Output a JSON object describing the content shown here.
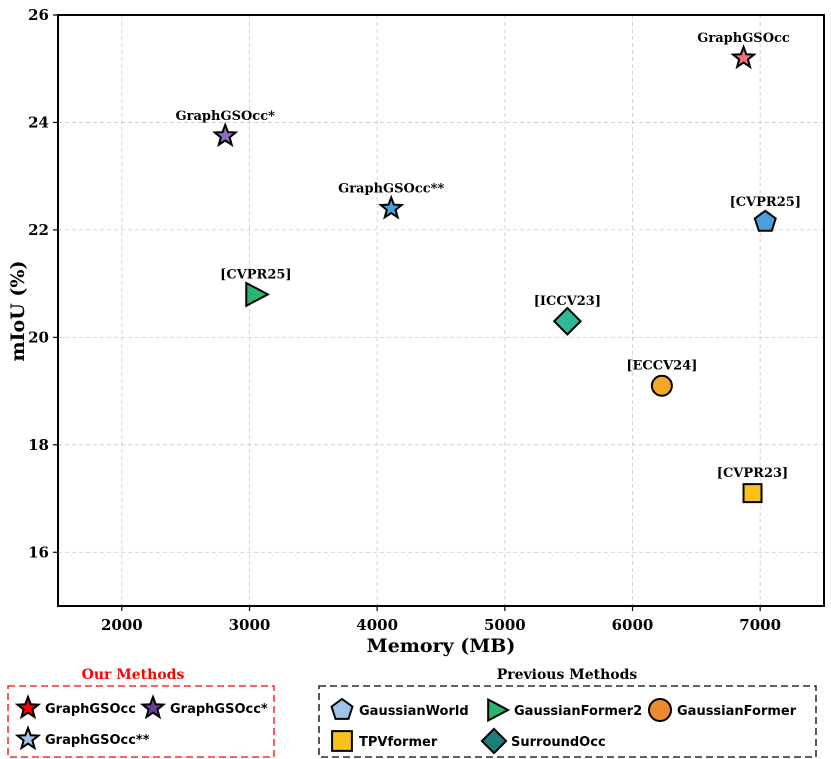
{
  "chart_data": {
    "type": "scatter",
    "xlabel": "Memory (MB)",
    "ylabel": "mIoU (%)",
    "xlim": [
      1500,
      7500
    ],
    "ylim": [
      15,
      26
    ],
    "xticks": [
      2000,
      3000,
      4000,
      5000,
      6000,
      7000
    ],
    "yticks": [
      16,
      18,
      20,
      22,
      24,
      26
    ],
    "grid": true,
    "points": [
      {
        "label": "GraphGSOcc",
        "method": "GraphGSOcc",
        "x": 6870,
        "y": 25.2,
        "marker": "star",
        "color": "#f0737a"
      },
      {
        "label": "GraphGSOcc*",
        "method": "GraphGSOcc*",
        "x": 2810,
        "y": 23.75,
        "marker": "star",
        "color": "#8e6bbf"
      },
      {
        "label": "GraphGSOcc**",
        "method": "GraphGSOcc**",
        "x": 4110,
        "y": 22.4,
        "marker": "star",
        "color": "#4a9fdc"
      },
      {
        "label": "[CVPR25]",
        "method": "GaussianWorld",
        "x": 7040,
        "y": 22.15,
        "marker": "pentagon",
        "color": "#4a9fdc"
      },
      {
        "label": "[CVPR25]",
        "method": "GaussianFormer2",
        "x": 3050,
        "y": 20.8,
        "marker": "triangle",
        "color": "#2ab46b"
      },
      {
        "label": "[ICCV23]",
        "method": "SurroundOcc",
        "x": 5490,
        "y": 20.3,
        "marker": "diamond",
        "color": "#2fb89a"
      },
      {
        "label": "[ECCV24]",
        "method": "GaussianFormer",
        "x": 6230,
        "y": 19.1,
        "marker": "circle",
        "color": "#f5a623"
      },
      {
        "label": "[CVPR23]",
        "method": "TPVformer",
        "x": 6940,
        "y": 17.1,
        "marker": "square",
        "color": "#f7c21c"
      }
    ],
    "legends": {
      "ours": {
        "title": "Our Methods",
        "title_color": "#ff0000",
        "entries": [
          {
            "label": "GraphGSOcc",
            "marker": "star",
            "color": "#ff0000"
          },
          {
            "label": "GraphGSOcc*",
            "marker": "star",
            "color": "#6b3fa0"
          },
          {
            "label": "GraphGSOcc**",
            "marker": "star",
            "color": "#9ec5e8"
          }
        ]
      },
      "previous": {
        "title": "Previous Methods",
        "title_color": "#000000",
        "entries": [
          {
            "label": "GaussianWorld",
            "marker": "pentagon",
            "color": "#9ec5e8"
          },
          {
            "label": "GaussianFormer2",
            "marker": "triangle",
            "color": "#2ab46b"
          },
          {
            "label": "GaussianFormer",
            "marker": "circle",
            "color": "#f08a30"
          },
          {
            "label": "TPVformer",
            "marker": "square",
            "color": "#f7c21c"
          },
          {
            "label": "SurroundOcc",
            "marker": "diamond",
            "color": "#1a7f7a"
          }
        ]
      }
    }
  }
}
